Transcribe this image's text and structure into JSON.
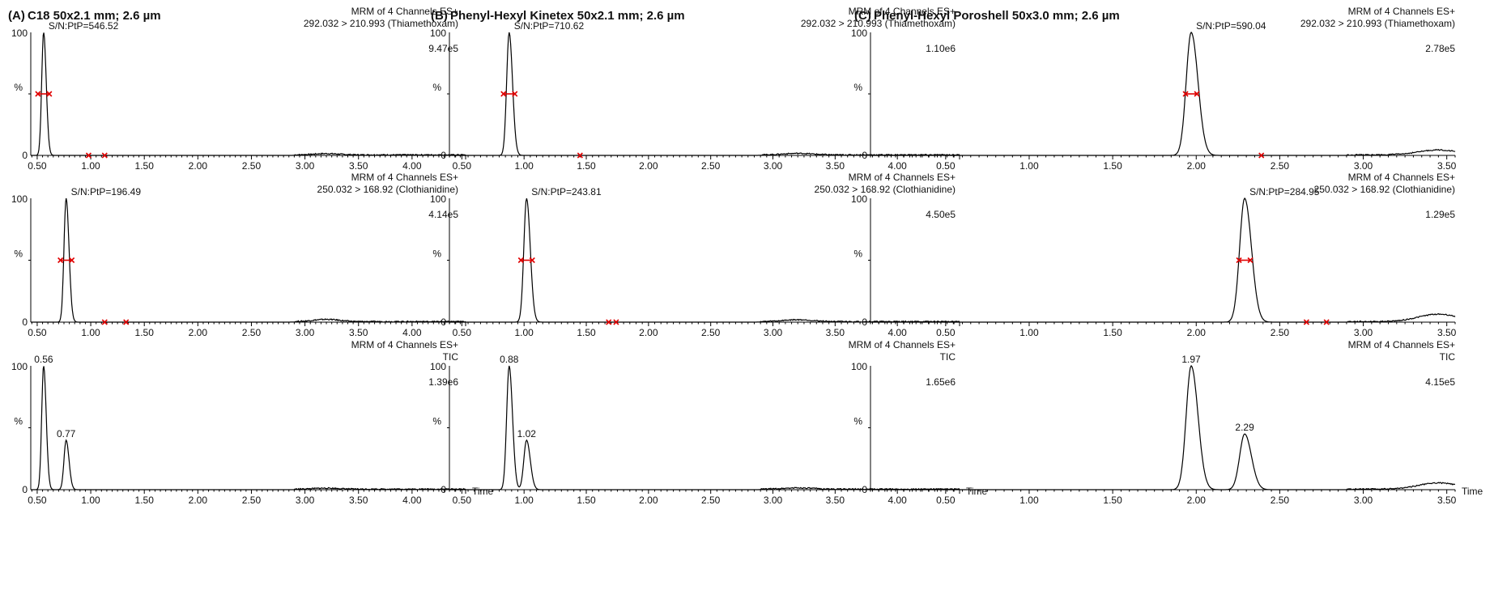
{
  "chart_data": [
    {
      "panel": "A",
      "label": "(A)",
      "title": "C18 50x2.1 mm; 2.6 µm",
      "row": 0,
      "type": "line",
      "header": [
        "MRM of 4 Channels ES+",
        "292.032 > 210.993 (Thiamethoxam)"
      ],
      "intensity": "9.47e5",
      "sn": "S/N:PtP=546.52",
      "xlim": [
        0.44,
        4.5
      ],
      "xticks": [
        0.5,
        1.0,
        1.5,
        2.0,
        2.5,
        3.0,
        3.5,
        4.0
      ],
      "xticklabels": [
        "0.50",
        "1.00",
        "1.50",
        "2.00",
        "2.50",
        "3.00",
        "3.50",
        "4.00"
      ],
      "yticks": [
        0,
        100
      ],
      "ylabel": "%",
      "peaks": [
        {
          "rt": 0.56,
          "height": 100,
          "width": 0.018
        }
      ],
      "baseline_bumps": [
        {
          "x": 3.2,
          "h": 1.0
        }
      ],
      "markers": [
        {
          "x": 0.56,
          "y": 50,
          "type": "span"
        },
        {
          "x": 0.98,
          "y": 0,
          "type": "dot"
        },
        {
          "x": 1.13,
          "y": 0,
          "type": "dot"
        }
      ]
    },
    {
      "panel": "A",
      "row": 1,
      "type": "line",
      "header": [
        "MRM of 4 Channels ES+",
        "250.032 > 168.92 (Clothianidine)"
      ],
      "intensity": "4.14e5",
      "sn": "S/N:PtP=196.49",
      "xlim": [
        0.44,
        4.5
      ],
      "xticks": [
        0.5,
        1.0,
        1.5,
        2.0,
        2.5,
        3.0,
        3.5,
        4.0
      ],
      "xticklabels": [
        "0.50",
        "1.00",
        "1.50",
        "2.00",
        "2.50",
        "3.00",
        "3.50",
        "4.00"
      ],
      "yticks": [
        0,
        100
      ],
      "ylabel": "%",
      "peaks": [
        {
          "rt": 0.77,
          "height": 100,
          "width": 0.02
        }
      ],
      "baseline_bumps": [
        {
          "x": 3.2,
          "h": 1.8
        }
      ],
      "markers": [
        {
          "x": 0.77,
          "y": 50,
          "type": "span"
        },
        {
          "x": 1.13,
          "y": 0,
          "type": "dot"
        },
        {
          "x": 1.33,
          "y": 0,
          "type": "dot"
        }
      ]
    },
    {
      "panel": "A",
      "row": 2,
      "type": "line",
      "header": [
        "MRM of 4 Channels ES+",
        "TIC"
      ],
      "intensity": "1.39e6",
      "xlabel": "Time",
      "xlim": [
        0.44,
        4.5
      ],
      "xticks": [
        0.5,
        1.0,
        1.5,
        2.0,
        2.5,
        3.0,
        3.5,
        4.0
      ],
      "xticklabels": [
        "0.50",
        "1.00",
        "1.50",
        "2.00",
        "2.50",
        "3.00",
        "3.50",
        "4.00"
      ],
      "yticks": [
        0,
        100
      ],
      "ylabel": "%",
      "peaks": [
        {
          "rt": 0.56,
          "height": 100,
          "width": 0.018,
          "label": "0.56"
        },
        {
          "rt": 0.77,
          "height": 40,
          "width": 0.02,
          "label": "0.77"
        }
      ],
      "baseline_bumps": [
        {
          "x": 3.2,
          "h": 0.8
        }
      ],
      "markers": []
    },
    {
      "panel": "B",
      "label": "(B)",
      "title": "Phenyl-Hexyl Kinetex 50x2.1 mm; 2.6 µm",
      "row": 0,
      "type": "line",
      "header": [
        "MRM of 4 Channels ES+",
        "292.032 > 210.993 (Thiamethoxam)"
      ],
      "intensity": "1.10e6",
      "sn": "S/N:PtP=710.62",
      "xlim": [
        0.4,
        4.5
      ],
      "xticks": [
        0.5,
        1.0,
        1.5,
        2.0,
        2.5,
        3.0,
        3.5,
        4.0
      ],
      "xticklabels": [
        "0.50",
        "1.00",
        "1.50",
        "2.00",
        "2.50",
        "3.00",
        "3.50",
        "4.00"
      ],
      "yticks": [
        0,
        100
      ],
      "ylabel": "%",
      "peaks": [
        {
          "rt": 0.88,
          "height": 100,
          "width": 0.02
        }
      ],
      "baseline_bumps": [
        {
          "x": 3.2,
          "h": 1.2
        }
      ],
      "markers": [
        {
          "x": 0.88,
          "y": 50,
          "type": "span"
        },
        {
          "x": 1.45,
          "y": 0,
          "type": "dot"
        }
      ]
    },
    {
      "panel": "B",
      "row": 1,
      "type": "line",
      "header": [
        "MRM of 4 Channels ES+",
        "250.032 > 168.92 (Clothianidine)"
      ],
      "intensity": "4.50e5",
      "sn": "S/N:PtP=243.81",
      "xlim": [
        0.4,
        4.5
      ],
      "xticks": [
        0.5,
        1.0,
        1.5,
        2.0,
        2.5,
        3.0,
        3.5,
        4.0
      ],
      "xticklabels": [
        "0.50",
        "1.00",
        "1.50",
        "2.00",
        "2.50",
        "3.00",
        "3.50",
        "4.00"
      ],
      "yticks": [
        0,
        100
      ],
      "ylabel": "%",
      "peaks": [
        {
          "rt": 1.02,
          "height": 100,
          "width": 0.022
        }
      ],
      "baseline_bumps": [
        {
          "x": 3.2,
          "h": 1.5
        }
      ],
      "markers": [
        {
          "x": 1.02,
          "y": 50,
          "type": "span"
        },
        {
          "x": 1.68,
          "y": 0,
          "type": "dot"
        },
        {
          "x": 1.74,
          "y": 0,
          "type": "dot"
        }
      ]
    },
    {
      "panel": "B",
      "row": 2,
      "type": "line",
      "header": [
        "MRM of 4 Channels ES+",
        "TIC"
      ],
      "intensity": "1.65e6",
      "xlabel": "Time",
      "xlim": [
        0.4,
        4.5
      ],
      "xticks": [
        0.5,
        1.0,
        1.5,
        2.0,
        2.5,
        3.0,
        3.5,
        4.0
      ],
      "xticklabels": [
        "0.50",
        "1.00",
        "1.50",
        "2.00",
        "2.50",
        "3.00",
        "3.50",
        "4.00"
      ],
      "yticks": [
        0,
        100
      ],
      "ylabel": "%",
      "peaks": [
        {
          "rt": 0.88,
          "height": 100,
          "width": 0.02,
          "label": "0.88"
        },
        {
          "rt": 1.02,
          "height": 40,
          "width": 0.022,
          "label": "1.02"
        }
      ],
      "baseline_bumps": [
        {
          "x": 3.2,
          "h": 1.0
        }
      ],
      "markers": []
    },
    {
      "panel": "C",
      "label": "(C)",
      "title": "Phenyl-Hexyl Poroshell 50x3.0 mm; 2.6 µm",
      "row": 0,
      "type": "line",
      "header": [
        "MRM of 4 Channels ES+",
        "292.032 > 210.993 (Thiamethoxam)"
      ],
      "intensity": "2.78e5",
      "sn": "S/N:PtP=590.04",
      "xlim": [
        0.05,
        3.55
      ],
      "xticks": [
        0.5,
        1.0,
        1.5,
        2.0,
        2.5,
        3.0,
        3.5
      ],
      "xticklabels": [
        "0.50",
        "1.00",
        "1.50",
        "2.00",
        "2.50",
        "3.00",
        "3.50"
      ],
      "yticks": [
        0,
        100
      ],
      "ylabel": "%",
      "peaks": [
        {
          "rt": 1.97,
          "height": 100,
          "width": 0.03
        }
      ],
      "baseline_bumps": [
        {
          "x": 3.45,
          "h": 4.0
        }
      ],
      "markers": [
        {
          "x": 1.97,
          "y": 50,
          "type": "span"
        },
        {
          "x": 2.39,
          "y": 0,
          "type": "dot"
        }
      ]
    },
    {
      "panel": "C",
      "row": 1,
      "type": "line",
      "header": [
        "MRM of 4 Channels ES+",
        "250.032 > 168.92 (Clothianidine)"
      ],
      "intensity": "1.29e5",
      "sn": "S/N:PtP=284.95",
      "xlim": [
        0.05,
        3.55
      ],
      "xticks": [
        0.5,
        1.0,
        1.5,
        2.0,
        2.5,
        3.0,
        3.5
      ],
      "xticklabels": [
        "0.50",
        "1.00",
        "1.50",
        "2.00",
        "2.50",
        "3.00",
        "3.50"
      ],
      "yticks": [
        0,
        100
      ],
      "ylabel": "%",
      "peaks": [
        {
          "rt": 2.29,
          "height": 100,
          "width": 0.03
        }
      ],
      "baseline_bumps": [
        {
          "x": 3.45,
          "h": 6.0
        }
      ],
      "markers": [
        {
          "x": 2.29,
          "y": 50,
          "type": "span"
        },
        {
          "x": 2.66,
          "y": 0,
          "type": "dot"
        },
        {
          "x": 2.78,
          "y": 0,
          "type": "dot"
        }
      ]
    },
    {
      "panel": "C",
      "row": 2,
      "type": "line",
      "header": [
        "MRM of 4 Channels ES+",
        "TIC"
      ],
      "intensity": "4.15e5",
      "xlabel": "Time",
      "xlim": [
        0.05,
        3.55
      ],
      "xticks": [
        0.5,
        1.0,
        1.5,
        2.0,
        2.5,
        3.0,
        3.5
      ],
      "xticklabels": [
        "0.50",
        "1.00",
        "1.50",
        "2.00",
        "2.50",
        "3.00",
        "3.50"
      ],
      "yticks": [
        0,
        100
      ],
      "ylabel": "%",
      "peaks": [
        {
          "rt": 1.97,
          "height": 100,
          "width": 0.03,
          "label": "1.97"
        },
        {
          "rt": 2.29,
          "height": 45,
          "width": 0.03,
          "label": "2.29"
        }
      ],
      "baseline_bumps": [
        {
          "x": 3.45,
          "h": 5.0
        }
      ],
      "markers": []
    }
  ],
  "colors": {
    "trace": "#000000",
    "marker": "#e00000"
  }
}
